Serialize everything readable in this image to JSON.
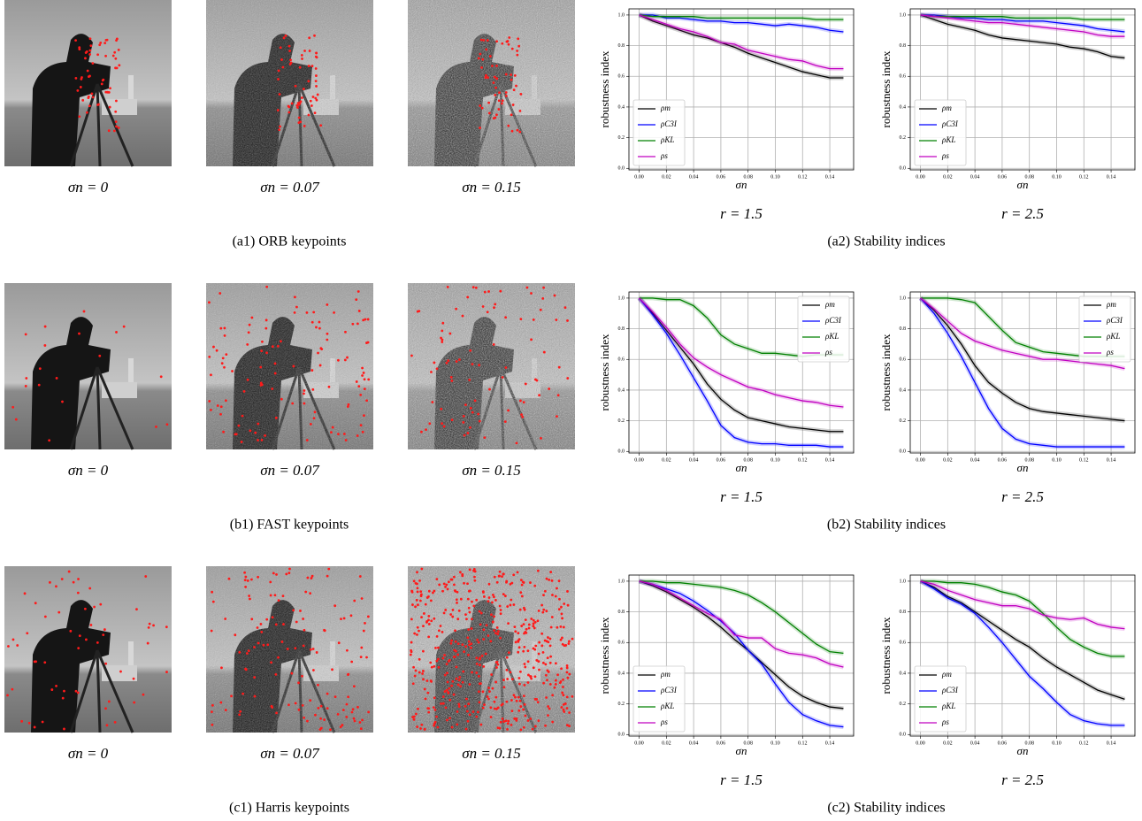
{
  "rows": [
    {
      "image_captions": [
        "σn = 0",
        "σn = 0.07",
        "σn = 0.15"
      ],
      "left_caption": "(a1) ORB keypoints",
      "right_caption": "(a2) Stability indices"
    },
    {
      "image_captions": [
        "σn = 0",
        "σn = 0.07",
        "σn = 0.15"
      ],
      "left_caption": "(b1) FAST keypoints",
      "right_caption": "(b2) Stability indices"
    },
    {
      "image_captions": [
        "σn = 0",
        "σn = 0.07",
        "σn = 0.15"
      ],
      "left_caption": "(c1) Harris keypoints",
      "right_caption": "(c2) Stability indices"
    }
  ],
  "chart_data": [
    {
      "type": "line",
      "caption": "r = 1.5",
      "xlabel": "σn",
      "ylabel": "robustness index",
      "grid": true,
      "legend": "lower left",
      "xlim": [
        -0.0075,
        0.1575
      ],
      "ylim": [
        -0.01,
        1.04
      ],
      "xticks": [
        {
          "value": 0,
          "label": "0.00"
        },
        {
          "value": 0.02,
          "label": "0.02"
        },
        {
          "value": 0.04,
          "label": "0.04"
        },
        {
          "value": 0.06,
          "label": "0.06"
        },
        {
          "value": 0.08,
          "label": "0.08"
        },
        {
          "value": 0.1,
          "label": "0.10"
        },
        {
          "value": 0.12,
          "label": "0.12"
        },
        {
          "value": 0.14,
          "label": "0.14"
        }
      ],
      "yticks": [
        {
          "value": 0,
          "label": "0.0"
        },
        {
          "value": 0.2,
          "label": "0.2"
        },
        {
          "value": 0.4,
          "label": "0.4"
        },
        {
          "value": 0.6,
          "label": "0.6"
        },
        {
          "value": 0.8,
          "label": "0.8"
        },
        {
          "value": 1,
          "label": "1.0"
        }
      ],
      "x": [
        0,
        0.01,
        0.02,
        0.03,
        0.04,
        0.05,
        0.06,
        0.07,
        0.08,
        0.09,
        0.1,
        0.11,
        0.12,
        0.13,
        0.14,
        0.15
      ],
      "series": [
        {
          "name": "ρm",
          "color": "#000000",
          "values": [
            1.0,
            0.96,
            0.93,
            0.9,
            0.87,
            0.85,
            0.82,
            0.79,
            0.75,
            0.72,
            0.69,
            0.66,
            0.63,
            0.61,
            0.59,
            0.59
          ]
        },
        {
          "name": "ρC3I",
          "color": "#0000ff",
          "values": [
            1.0,
            1.0,
            0.98,
            0.98,
            0.97,
            0.96,
            0.96,
            0.95,
            0.95,
            0.94,
            0.93,
            0.94,
            0.93,
            0.92,
            0.9,
            0.89
          ]
        },
        {
          "name": "ρKL",
          "color": "#008000",
          "values": [
            1.0,
            0.99,
            0.99,
            0.99,
            0.99,
            0.98,
            0.98,
            0.98,
            0.98,
            0.98,
            0.98,
            0.98,
            0.98,
            0.97,
            0.97,
            0.97
          ]
        },
        {
          "name": "ρs",
          "color": "#c000c0",
          "values": [
            1.0,
            0.97,
            0.94,
            0.91,
            0.89,
            0.86,
            0.82,
            0.81,
            0.77,
            0.75,
            0.73,
            0.71,
            0.7,
            0.67,
            0.65,
            0.65
          ]
        }
      ]
    },
    {
      "type": "line",
      "caption": "r = 2.5",
      "xlabel": "σn",
      "ylabel": "robustness index",
      "grid": true,
      "legend": "lower left",
      "xlim": [
        -0.0075,
        0.1575
      ],
      "ylim": [
        -0.01,
        1.04
      ],
      "xticks": [
        {
          "value": 0,
          "label": "0.00"
        },
        {
          "value": 0.02,
          "label": "0.02"
        },
        {
          "value": 0.04,
          "label": "0.04"
        },
        {
          "value": 0.06,
          "label": "0.06"
        },
        {
          "value": 0.08,
          "label": "0.08"
        },
        {
          "value": 0.1,
          "label": "0.10"
        },
        {
          "value": 0.12,
          "label": "0.12"
        },
        {
          "value": 0.14,
          "label": "0.14"
        }
      ],
      "yticks": [
        {
          "value": 0,
          "label": "0.0"
        },
        {
          "value": 0.2,
          "label": "0.2"
        },
        {
          "value": 0.4,
          "label": "0.4"
        },
        {
          "value": 0.6,
          "label": "0.6"
        },
        {
          "value": 0.8,
          "label": "0.8"
        },
        {
          "value": 1,
          "label": "1.0"
        }
      ],
      "x": [
        0,
        0.01,
        0.02,
        0.03,
        0.04,
        0.05,
        0.06,
        0.07,
        0.08,
        0.09,
        0.1,
        0.11,
        0.12,
        0.13,
        0.14,
        0.15
      ],
      "series": [
        {
          "name": "ρm",
          "color": "#000000",
          "values": [
            1.0,
            0.97,
            0.94,
            0.92,
            0.9,
            0.87,
            0.85,
            0.84,
            0.83,
            0.82,
            0.81,
            0.79,
            0.78,
            0.76,
            0.73,
            0.72
          ]
        },
        {
          "name": "ρC3I",
          "color": "#0000ff",
          "values": [
            1.0,
            1.0,
            0.99,
            0.98,
            0.98,
            0.97,
            0.97,
            0.96,
            0.96,
            0.96,
            0.95,
            0.94,
            0.93,
            0.91,
            0.9,
            0.89
          ]
        },
        {
          "name": "ρKL",
          "color": "#008000",
          "values": [
            1.0,
            0.99,
            0.99,
            0.99,
            0.99,
            0.99,
            0.99,
            0.98,
            0.98,
            0.98,
            0.98,
            0.98,
            0.97,
            0.97,
            0.97,
            0.97
          ]
        },
        {
          "name": "ρs",
          "color": "#c000c0",
          "values": [
            1.0,
            0.99,
            0.98,
            0.97,
            0.96,
            0.95,
            0.95,
            0.94,
            0.93,
            0.92,
            0.91,
            0.9,
            0.89,
            0.87,
            0.86,
            0.86
          ]
        }
      ]
    },
    {
      "type": "line",
      "caption": "r = 1.5",
      "xlabel": "σn",
      "ylabel": "robustness index",
      "grid": true,
      "legend": "upper right",
      "xlim": [
        -0.0075,
        0.1575
      ],
      "ylim": [
        -0.01,
        1.04
      ],
      "xticks": [
        {
          "value": 0,
          "label": "0.00"
        },
        {
          "value": 0.02,
          "label": "0.02"
        },
        {
          "value": 0.04,
          "label": "0.04"
        },
        {
          "value": 0.06,
          "label": "0.06"
        },
        {
          "value": 0.08,
          "label": "0.08"
        },
        {
          "value": 0.1,
          "label": "0.10"
        },
        {
          "value": 0.12,
          "label": "0.12"
        },
        {
          "value": 0.14,
          "label": "0.14"
        }
      ],
      "yticks": [
        {
          "value": 0,
          "label": "0.0"
        },
        {
          "value": 0.2,
          "label": "0.2"
        },
        {
          "value": 0.4,
          "label": "0.4"
        },
        {
          "value": 0.6,
          "label": "0.6"
        },
        {
          "value": 0.8,
          "label": "0.8"
        },
        {
          "value": 1,
          "label": "1.0"
        }
      ],
      "x": [
        0,
        0.01,
        0.02,
        0.03,
        0.04,
        0.05,
        0.06,
        0.07,
        0.08,
        0.09,
        0.1,
        0.11,
        0.12,
        0.13,
        0.14,
        0.15
      ],
      "series": [
        {
          "name": "ρm",
          "color": "#000000",
          "values": [
            1.0,
            0.9,
            0.79,
            0.68,
            0.57,
            0.44,
            0.34,
            0.27,
            0.22,
            0.2,
            0.18,
            0.16,
            0.15,
            0.14,
            0.13,
            0.13
          ]
        },
        {
          "name": "ρC3I",
          "color": "#0000ff",
          "values": [
            1.0,
            0.89,
            0.77,
            0.63,
            0.48,
            0.33,
            0.17,
            0.09,
            0.06,
            0.05,
            0.05,
            0.04,
            0.04,
            0.04,
            0.03,
            0.03
          ]
        },
        {
          "name": "ρKL",
          "color": "#008000",
          "values": [
            1.0,
            1.0,
            0.99,
            0.99,
            0.95,
            0.87,
            0.76,
            0.7,
            0.67,
            0.64,
            0.64,
            0.63,
            0.62,
            0.63,
            0.63,
            0.63
          ]
        },
        {
          "name": "ρs",
          "color": "#c000c0",
          "values": [
            1.0,
            0.91,
            0.81,
            0.7,
            0.61,
            0.55,
            0.5,
            0.46,
            0.42,
            0.4,
            0.37,
            0.35,
            0.33,
            0.32,
            0.3,
            0.29
          ]
        }
      ]
    },
    {
      "type": "line",
      "caption": "r = 2.5",
      "xlabel": "σn",
      "ylabel": "robustness index",
      "grid": true,
      "legend": "upper right",
      "xlim": [
        -0.0075,
        0.1575
      ],
      "ylim": [
        -0.01,
        1.04
      ],
      "xticks": [
        {
          "value": 0,
          "label": "0.00"
        },
        {
          "value": 0.02,
          "label": "0.02"
        },
        {
          "value": 0.04,
          "label": "0.04"
        },
        {
          "value": 0.06,
          "label": "0.06"
        },
        {
          "value": 0.08,
          "label": "0.08"
        },
        {
          "value": 0.1,
          "label": "0.10"
        },
        {
          "value": 0.12,
          "label": "0.12"
        },
        {
          "value": 0.14,
          "label": "0.14"
        }
      ],
      "yticks": [
        {
          "value": 0,
          "label": "0.0"
        },
        {
          "value": 0.2,
          "label": "0.2"
        },
        {
          "value": 0.4,
          "label": "0.4"
        },
        {
          "value": 0.6,
          "label": "0.6"
        },
        {
          "value": 0.8,
          "label": "0.8"
        },
        {
          "value": 1,
          "label": "1.0"
        }
      ],
      "x": [
        0,
        0.01,
        0.02,
        0.03,
        0.04,
        0.05,
        0.06,
        0.07,
        0.08,
        0.09,
        0.1,
        0.11,
        0.12,
        0.13,
        0.14,
        0.15
      ],
      "series": [
        {
          "name": "ρm",
          "color": "#000000",
          "values": [
            1.0,
            0.92,
            0.82,
            0.7,
            0.56,
            0.45,
            0.38,
            0.32,
            0.28,
            0.26,
            0.25,
            0.24,
            0.23,
            0.22,
            0.21,
            0.2
          ]
        },
        {
          "name": "ρC3I",
          "color": "#0000ff",
          "values": [
            1.0,
            0.9,
            0.77,
            0.62,
            0.45,
            0.28,
            0.15,
            0.08,
            0.05,
            0.04,
            0.03,
            0.03,
            0.03,
            0.03,
            0.03,
            0.03
          ]
        },
        {
          "name": "ρKL",
          "color": "#008000",
          "values": [
            1.0,
            1.0,
            1.0,
            0.99,
            0.97,
            0.88,
            0.79,
            0.71,
            0.68,
            0.65,
            0.64,
            0.63,
            0.62,
            0.62,
            0.62,
            0.62
          ]
        },
        {
          "name": "ρs",
          "color": "#c000c0",
          "values": [
            1.0,
            0.93,
            0.85,
            0.77,
            0.72,
            0.69,
            0.66,
            0.64,
            0.62,
            0.6,
            0.6,
            0.59,
            0.58,
            0.57,
            0.56,
            0.54
          ]
        }
      ]
    },
    {
      "type": "line",
      "caption": "r = 1.5",
      "xlabel": "σn",
      "ylabel": "robustness index",
      "grid": true,
      "legend": "lower left",
      "xlim": [
        -0.0075,
        0.1575
      ],
      "ylim": [
        -0.01,
        1.04
      ],
      "xticks": [
        {
          "value": 0,
          "label": "0.00"
        },
        {
          "value": 0.02,
          "label": "0.02"
        },
        {
          "value": 0.04,
          "label": "0.04"
        },
        {
          "value": 0.06,
          "label": "0.06"
        },
        {
          "value": 0.08,
          "label": "0.08"
        },
        {
          "value": 0.1,
          "label": "0.10"
        },
        {
          "value": 0.12,
          "label": "0.12"
        },
        {
          "value": 0.14,
          "label": "0.14"
        }
      ],
      "yticks": [
        {
          "value": 0,
          "label": "0.0"
        },
        {
          "value": 0.2,
          "label": "0.2"
        },
        {
          "value": 0.4,
          "label": "0.4"
        },
        {
          "value": 0.6,
          "label": "0.6"
        },
        {
          "value": 0.8,
          "label": "0.8"
        },
        {
          "value": 1,
          "label": "1.0"
        }
      ],
      "x": [
        0,
        0.01,
        0.02,
        0.03,
        0.04,
        0.05,
        0.06,
        0.07,
        0.08,
        0.09,
        0.1,
        0.11,
        0.12,
        0.13,
        0.14,
        0.15
      ],
      "series": [
        {
          "name": "ρm",
          "color": "#000000",
          "values": [
            1.0,
            0.97,
            0.93,
            0.88,
            0.83,
            0.77,
            0.7,
            0.62,
            0.55,
            0.47,
            0.39,
            0.31,
            0.25,
            0.21,
            0.18,
            0.17
          ]
        },
        {
          "name": "ρC3I",
          "color": "#0000ff",
          "values": [
            1.0,
            0.98,
            0.95,
            0.92,
            0.87,
            0.81,
            0.74,
            0.66,
            0.55,
            0.46,
            0.33,
            0.21,
            0.13,
            0.09,
            0.06,
            0.05
          ]
        },
        {
          "name": "ρKL",
          "color": "#008000",
          "values": [
            1.0,
            1.0,
            0.99,
            0.99,
            0.98,
            0.97,
            0.96,
            0.94,
            0.91,
            0.86,
            0.8,
            0.73,
            0.66,
            0.59,
            0.54,
            0.53
          ]
        },
        {
          "name": "ρs",
          "color": "#c000c0",
          "values": [
            1.0,
            0.98,
            0.94,
            0.89,
            0.84,
            0.79,
            0.75,
            0.65,
            0.63,
            0.63,
            0.56,
            0.53,
            0.52,
            0.5,
            0.46,
            0.44
          ]
        }
      ]
    },
    {
      "type": "line",
      "caption": "r = 2.5",
      "xlabel": "σn",
      "ylabel": "robustness index",
      "grid": true,
      "legend": "lower left",
      "xlim": [
        -0.0075,
        0.1575
      ],
      "ylim": [
        -0.01,
        1.04
      ],
      "xticks": [
        {
          "value": 0,
          "label": "0.00"
        },
        {
          "value": 0.02,
          "label": "0.02"
        },
        {
          "value": 0.04,
          "label": "0.04"
        },
        {
          "value": 0.06,
          "label": "0.06"
        },
        {
          "value": 0.08,
          "label": "0.08"
        },
        {
          "value": 0.1,
          "label": "0.10"
        },
        {
          "value": 0.12,
          "label": "0.12"
        },
        {
          "value": 0.14,
          "label": "0.14"
        }
      ],
      "yticks": [
        {
          "value": 0,
          "label": "0.0"
        },
        {
          "value": 0.2,
          "label": "0.2"
        },
        {
          "value": 0.4,
          "label": "0.4"
        },
        {
          "value": 0.6,
          "label": "0.6"
        },
        {
          "value": 0.8,
          "label": "0.8"
        },
        {
          "value": 1,
          "label": "1.0"
        }
      ],
      "x": [
        0,
        0.01,
        0.02,
        0.03,
        0.04,
        0.05,
        0.06,
        0.07,
        0.08,
        0.09,
        0.1,
        0.11,
        0.12,
        0.13,
        0.14,
        0.15
      ],
      "series": [
        {
          "name": "ρm",
          "color": "#000000",
          "values": [
            1.0,
            0.96,
            0.9,
            0.86,
            0.8,
            0.74,
            0.68,
            0.62,
            0.57,
            0.5,
            0.44,
            0.39,
            0.34,
            0.29,
            0.26,
            0.23
          ]
        },
        {
          "name": "ρC3I",
          "color": "#0000ff",
          "values": [
            1.0,
            0.95,
            0.89,
            0.85,
            0.79,
            0.7,
            0.6,
            0.49,
            0.38,
            0.3,
            0.21,
            0.13,
            0.09,
            0.07,
            0.06,
            0.06
          ]
        },
        {
          "name": "ρKL",
          "color": "#008000",
          "values": [
            1.0,
            1.0,
            0.99,
            0.99,
            0.98,
            0.96,
            0.93,
            0.91,
            0.87,
            0.79,
            0.7,
            0.62,
            0.57,
            0.53,
            0.51,
            0.51
          ]
        },
        {
          "name": "ρs",
          "color": "#c000c0",
          "values": [
            1.0,
            0.98,
            0.94,
            0.91,
            0.88,
            0.86,
            0.84,
            0.84,
            0.82,
            0.78,
            0.76,
            0.75,
            0.76,
            0.72,
            0.7,
            0.69
          ]
        }
      ]
    }
  ]
}
